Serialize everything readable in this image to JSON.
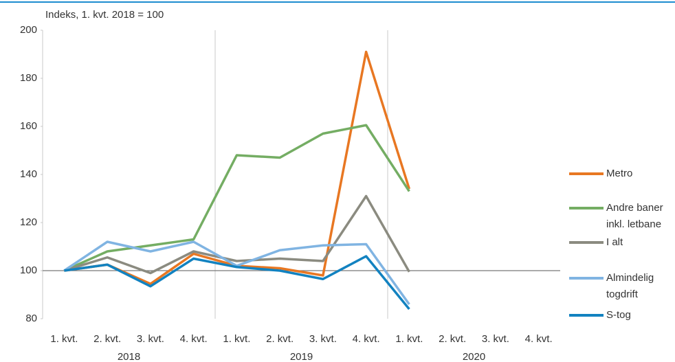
{
  "chart_data": {
    "type": "line",
    "ylabel": "Indeks, 1. kvt. 2018 = 100",
    "categories": [
      "1. kvt.",
      "2. kvt.",
      "3. kvt.",
      "4. kvt.",
      "1. kvt.",
      "2. kvt.",
      "3. kvt.",
      "4. kvt.",
      "1. kvt.",
      "2. kvt.",
      "3. kvt.",
      "4. kvt."
    ],
    "groups": [
      "2018",
      "2019",
      "2020"
    ],
    "series": [
      {
        "name": "Metro",
        "color": "#e87722",
        "values": [
          100,
          102.5,
          94.5,
          107,
          102,
          101,
          98,
          191,
          134,
          null,
          null,
          null
        ]
      },
      {
        "name": "Andre baner inkl. letbane",
        "color": "#74ad63",
        "values": [
          100,
          108,
          110.5,
          113,
          148,
          147,
          157,
          160.5,
          133,
          null,
          null,
          null
        ]
      },
      {
        "name": "I alt",
        "color": "#8b8b80",
        "values": [
          100,
          105.5,
          99,
          108,
          104,
          105,
          104,
          131,
          99.5,
          null,
          null,
          null
        ]
      },
      {
        "name": "Almindelig togdrift",
        "color": "#80b4e2",
        "values": [
          100,
          112,
          108,
          112,
          102,
          108.5,
          110.5,
          111,
          86,
          null,
          null,
          null
        ]
      },
      {
        "name": "S-tog",
        "color": "#1282c0",
        "values": [
          100,
          102.5,
          93.5,
          105,
          101.5,
          100,
          96.5,
          106,
          84,
          null,
          null,
          null
        ]
      }
    ],
    "ylim": [
      80,
      200
    ],
    "yticks": [
      80,
      100,
      120,
      140,
      160,
      180,
      200
    ],
    "reference_line": 100,
    "legend": "right"
  }
}
